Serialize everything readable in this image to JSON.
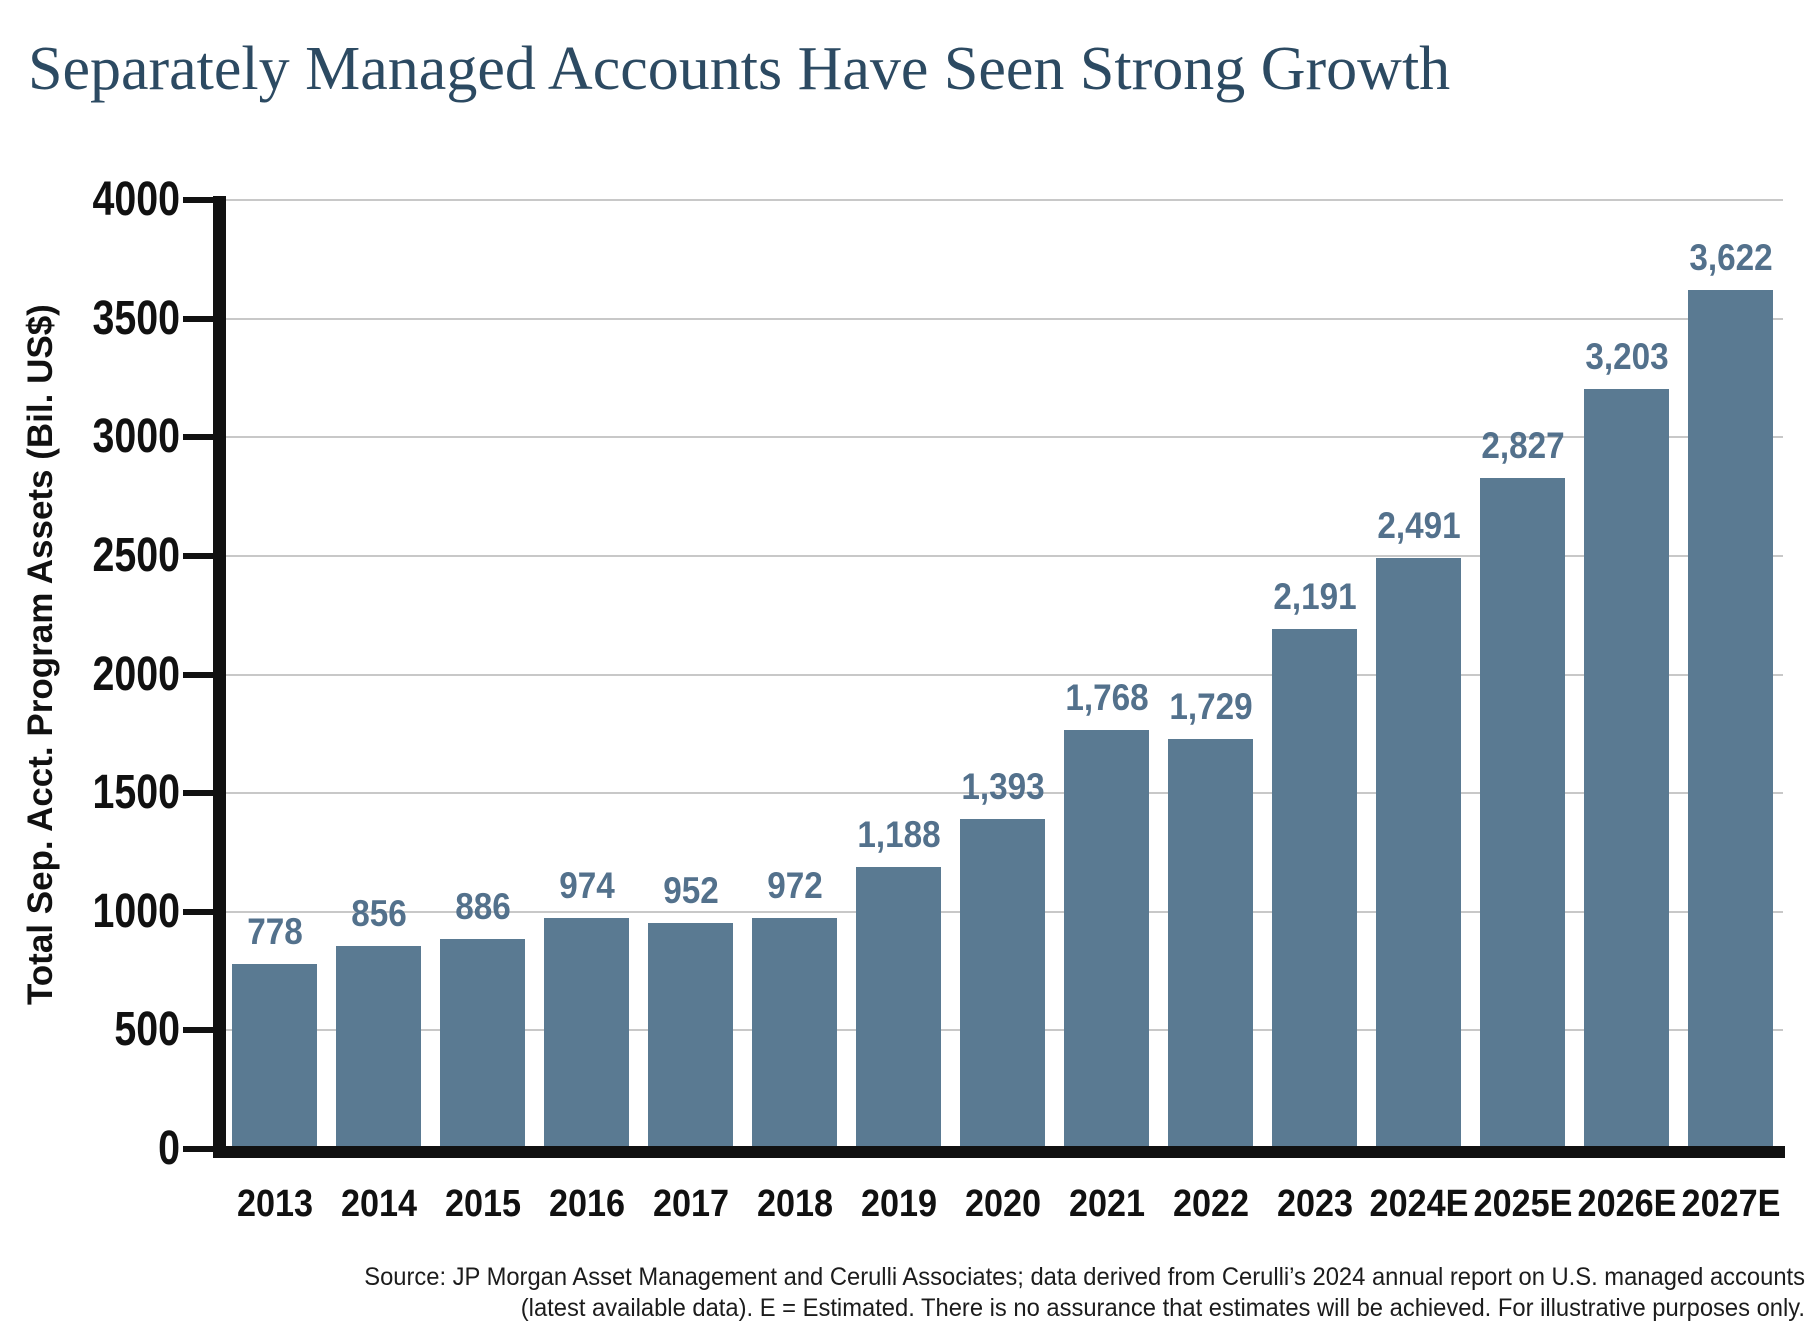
{
  "title": "Separately Managed Accounts Have Seen Strong Growth",
  "chart_data": {
    "type": "bar",
    "title": "Separately Managed Accounts Have Seen Strong Growth",
    "categories": [
      "2013",
      "2014",
      "2015",
      "2016",
      "2017",
      "2018",
      "2019",
      "2020",
      "2021",
      "2022",
      "2023",
      "2024E",
      "2025E",
      "2026E",
      "2027E"
    ],
    "values": [
      778,
      856,
      886,
      974,
      952,
      972,
      1188,
      1393,
      1768,
      1729,
      2191,
      2491,
      2827,
      3203,
      3622
    ],
    "value_labels": [
      "778",
      "856",
      "886",
      "974",
      "952",
      "972",
      "1,188",
      "1,393",
      "1,768",
      "1,729",
      "2,191",
      "2,491",
      "2,827",
      "3,203",
      "3,622"
    ],
    "xlabel": "",
    "ylabel": "Total Sep. Acct. Program Assets (Bil. US$)",
    "ylim": [
      0,
      4000
    ],
    "yticks": [
      0,
      500,
      1000,
      1500,
      2000,
      2500,
      3000,
      3500,
      4000
    ],
    "grid": "horizontal",
    "legend": "none",
    "bar_color": "#5a7a92",
    "value_label_color": "#53718c"
  },
  "source": {
    "line1": "Source: JP Morgan Asset Management and Cerulli Associates; data derived from Cerulli’s 2024 annual report on U.S. managed accounts",
    "line2": "(latest available data). E = Estimated. There is no assurance that estimates will be achieved. For illustrative purposes only."
  },
  "colors": {
    "title": "#2c4a62",
    "axis": "#111111",
    "grid": "#c8c8c8",
    "background": "#ffffff"
  }
}
